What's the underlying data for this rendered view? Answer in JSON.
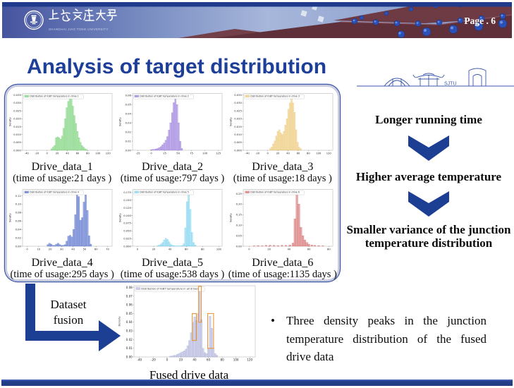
{
  "banner": {
    "university_cn": "上海交通大學",
    "university_en": "SHANGHAI JIAO TONG UNIVERSITY",
    "page_label": "Page .  6",
    "sketch_label": "SJTU"
  },
  "title": "Analysis of target distribution",
  "flow": {
    "steps": [
      "Longer running time",
      "Higher average temperature",
      "Smaller variance of the junction temperature distribution"
    ]
  },
  "fusion": {
    "line1": "Dataset",
    "line2": "fusion"
  },
  "bullet": {
    "marker": "•",
    "text": "Three density peaks in the junction temperature distribution of the fused drive data"
  },
  "colors": {
    "accent_navy": "#1c3f94",
    "title_blue": "#1d3f99",
    "highlight_orange": "#e8963c"
  },
  "chart_data": [
    {
      "type": "histogram",
      "name": "drive1",
      "legend": "Distribution of IGBT temperature in drive 1",
      "caption": "Drive_data_1",
      "subcaption": "(time of usage:21 days )",
      "color": "#7fd97f",
      "edge": "#4db84d",
      "ylabel": "Density",
      "xlim": [
        -48,
        128
      ],
      "xticks": [
        -40,
        -20,
        0,
        20,
        40,
        60,
        80,
        100,
        120
      ],
      "ylim": [
        0,
        0.036
      ],
      "yticks": [
        0,
        0.005,
        0.01,
        0.015,
        0.02,
        0.025,
        0.03,
        0.035
      ],
      "ydec": 3,
      "bin_width": 3,
      "bars": [
        [
          9,
          0.001
        ],
        [
          12,
          0.002
        ],
        [
          15,
          0.003
        ],
        [
          18,
          0.008
        ],
        [
          21,
          0.0085
        ],
        [
          24,
          0.008
        ],
        [
          27,
          0.007
        ],
        [
          30,
          0.009
        ],
        [
          33,
          0.014
        ],
        [
          36,
          0.02
        ],
        [
          39,
          0.027
        ],
        [
          42,
          0.031
        ],
        [
          45,
          0.0345
        ],
        [
          48,
          0.033
        ],
        [
          51,
          0.028
        ],
        [
          54,
          0.022
        ],
        [
          57,
          0.017
        ],
        [
          60,
          0.012
        ],
        [
          63,
          0.008
        ],
        [
          66,
          0.005
        ],
        [
          69,
          0.003
        ],
        [
          72,
          0.002
        ],
        [
          75,
          0.001
        ],
        [
          78,
          0.0005
        ]
      ]
    },
    {
      "type": "histogram",
      "name": "drive2",
      "legend": "Distribution of IGBT temperature in drive 2",
      "caption": "Drive_data_2",
      "subcaption": "(time of usage:797 days )",
      "color": "#9c7fe0",
      "edge": "#7a55cc",
      "ylabel": "Density",
      "xlim": [
        -35,
        132
      ],
      "xticks": [
        -25,
        0,
        25,
        50,
        75,
        100,
        125
      ],
      "ylim": [
        0,
        0.062
      ],
      "yticks": [
        0,
        0.01,
        0.02,
        0.03,
        0.04,
        0.05,
        0.06
      ],
      "ydec": 2,
      "bin_width": 3,
      "bars": [
        [
          0,
          0.0005
        ],
        [
          3,
          0.001
        ],
        [
          6,
          0.001
        ],
        [
          9,
          0.0015
        ],
        [
          12,
          0.002
        ],
        [
          15,
          0.003
        ],
        [
          18,
          0.004
        ],
        [
          21,
          0.006
        ],
        [
          24,
          0.008
        ],
        [
          27,
          0.011
        ],
        [
          30,
          0.015
        ],
        [
          33,
          0.022
        ],
        [
          36,
          0.03
        ],
        [
          39,
          0.041
        ],
        [
          42,
          0.052
        ],
        [
          45,
          0.058
        ],
        [
          48,
          0.05
        ],
        [
          51,
          0.03
        ],
        [
          54,
          0.01
        ],
        [
          57,
          0.002
        ]
      ]
    },
    {
      "type": "histogram",
      "name": "drive3",
      "legend": "Distribution of IGBT temperature in drive 3",
      "caption": "Drive_data_3",
      "subcaption": "(time of usage:18 days )",
      "color": "#f0cd7d",
      "edge": "#ddb04a",
      "ylabel": "Density",
      "xlim": [
        -48,
        128
      ],
      "xticks": [
        -40,
        -20,
        0,
        20,
        40,
        60,
        80,
        100,
        120
      ],
      "ylim": [
        0,
        0.036
      ],
      "yticks": [
        0,
        0.005,
        0.01,
        0.015,
        0.02,
        0.025,
        0.03,
        0.035
      ],
      "ydec": 3,
      "bin_width": 3,
      "bars": [
        [
          5,
          0.001
        ],
        [
          8,
          0.002
        ],
        [
          11,
          0.004
        ],
        [
          14,
          0.006
        ],
        [
          17,
          0.009
        ],
        [
          20,
          0.012
        ],
        [
          23,
          0.013
        ],
        [
          26,
          0.011
        ],
        [
          29,
          0.01
        ],
        [
          32,
          0.012
        ],
        [
          35,
          0.016
        ],
        [
          38,
          0.02
        ],
        [
          41,
          0.026
        ],
        [
          44,
          0.03
        ],
        [
          47,
          0.0335
        ],
        [
          50,
          0.03
        ],
        [
          53,
          0.024
        ],
        [
          56,
          0.013
        ],
        [
          59,
          0.005
        ],
        [
          62,
          0.002
        ],
        [
          65,
          0.001
        ]
      ]
    },
    {
      "type": "histogram",
      "name": "drive4",
      "legend": "Distribution of IGBT temperature in drive 4",
      "caption": "Drive_data_4",
      "subcaption": "(time of usage:295 days )",
      "color": "#5570cf",
      "edge": "#3a55bb",
      "ylabel": "Density",
      "xlim": [
        -4,
        74
      ],
      "xticks": [
        0,
        10,
        20,
        30,
        40,
        50,
        60,
        70
      ],
      "ylim": [
        0,
        0.135
      ],
      "yticks": [
        0,
        0.02,
        0.04,
        0.06,
        0.08,
        0.1,
        0.12
      ],
      "ydec": 2,
      "bin_width": 1.5,
      "bars": [
        [
          18,
          0.004
        ],
        [
          19.5,
          0.007
        ],
        [
          21,
          0.005
        ],
        [
          22.5,
          0.002
        ],
        [
          24,
          0.002
        ],
        [
          25.5,
          0.005
        ],
        [
          27,
          0.007
        ],
        [
          28.5,
          0.004
        ],
        [
          30,
          0.002
        ],
        [
          31.5,
          0.002
        ],
        [
          33,
          0.004
        ],
        [
          34.5,
          0.012
        ],
        [
          36,
          0.024
        ],
        [
          37.5,
          0.026
        ],
        [
          39,
          0.022
        ],
        [
          40.5,
          0.04
        ],
        [
          42,
          0.075
        ],
        [
          43.5,
          0.128
        ],
        [
          45,
          0.118
        ],
        [
          46.5,
          0.062
        ],
        [
          48,
          0.068
        ],
        [
          49.5,
          0.105
        ],
        [
          51,
          0.122
        ],
        [
          52.5,
          0.085
        ],
        [
          54,
          0.025
        ],
        [
          55.5,
          0.005
        ]
      ]
    },
    {
      "type": "histogram",
      "name": "drive5",
      "legend": "Distribution of IGBT temperature in drive 5",
      "caption": "Drive_data_5",
      "subcaption": "(time of usage:538 days )",
      "color": "#85d6f2",
      "edge": "#4cbfe8",
      "ylabel": "Density",
      "xlim": [
        -6,
        104
      ],
      "xticks": [
        0,
        20,
        40,
        60,
        80,
        100
      ],
      "ylim": [
        0,
        0.185
      ],
      "yticks": [
        0,
        0.025,
        0.05,
        0.075,
        0.1,
        0.125,
        0.15,
        0.175
      ],
      "ydec": 3,
      "bin_width": 2,
      "bars": [
        [
          25,
          0.002
        ],
        [
          27,
          0.004
        ],
        [
          29,
          0.007
        ],
        [
          31,
          0.012
        ],
        [
          33,
          0.02
        ],
        [
          35,
          0.026
        ],
        [
          37,
          0.022
        ],
        [
          39,
          0.014
        ],
        [
          41,
          0.007
        ],
        [
          43,
          0.003
        ],
        [
          45,
          0.002
        ],
        [
          47,
          0.001
        ],
        [
          49,
          0.001
        ],
        [
          51,
          0.001
        ],
        [
          53,
          0.001
        ],
        [
          55,
          0.002
        ],
        [
          57,
          0.008
        ],
        [
          59,
          0.06
        ],
        [
          61,
          0.145
        ],
        [
          63,
          0.172
        ],
        [
          65,
          0.12
        ],
        [
          67,
          0.045
        ],
        [
          69,
          0.012
        ],
        [
          71,
          0.004
        ]
      ]
    },
    {
      "type": "histogram",
      "name": "drive6",
      "legend": "Distribution of IGBT temperature in drive 6",
      "caption": "Drive_data_6",
      "subcaption": "(time of usage:1135 days )",
      "color": "#d97070",
      "edge": "#c64848",
      "ylabel": "Density",
      "xlim": [
        -6,
        84
      ],
      "xticks": [
        0,
        20,
        40,
        60,
        80
      ],
      "ylim": [
        0,
        0.27
      ],
      "yticks": [
        0,
        0.05,
        0.1,
        0.15,
        0.2,
        0.25
      ],
      "ydec": 2,
      "bin_width": 2,
      "bars": [
        [
          5,
          0.002
        ],
        [
          9,
          0.003
        ],
        [
          13,
          0.002
        ],
        [
          17,
          0.004
        ],
        [
          21,
          0.005
        ],
        [
          25,
          0.004
        ],
        [
          29,
          0.003
        ],
        [
          33,
          0.005
        ],
        [
          37,
          0.004
        ],
        [
          41,
          0.006
        ],
        [
          44,
          0.015
        ],
        [
          46,
          0.13
        ],
        [
          48,
          0.255
        ],
        [
          50,
          0.2
        ],
        [
          52,
          0.09
        ],
        [
          54,
          0.05
        ],
        [
          56,
          0.03
        ],
        [
          58,
          0.018
        ],
        [
          60,
          0.01
        ],
        [
          63,
          0.006
        ],
        [
          66,
          0.004
        ],
        [
          70,
          0.003
        ],
        [
          74,
          0.002
        ]
      ]
    },
    {
      "type": "histogram",
      "name": "fused",
      "legend": "Distribution of IGBT temperature in all drives",
      "caption": "Fused drive data",
      "subcaption": "",
      "color": "#b3b7df",
      "edge": "#9296c8",
      "ylabel": "Density",
      "xlim": [
        -48,
        128
      ],
      "xticks": [
        -40,
        -20,
        0,
        20,
        40,
        60,
        80,
        100,
        120
      ],
      "ylim": [
        0,
        0.082
      ],
      "yticks": [
        0,
        0.01,
        0.02,
        0.03,
        0.04,
        0.05,
        0.06,
        0.07,
        0.08
      ],
      "ydec": 2,
      "bin_width": 2.5,
      "bars": [
        [
          5,
          0.001
        ],
        [
          7.5,
          0.001
        ],
        [
          10,
          0.002
        ],
        [
          12.5,
          0.002
        ],
        [
          15,
          0.003
        ],
        [
          17.5,
          0.004
        ],
        [
          20,
          0.005
        ],
        [
          22.5,
          0.006
        ],
        [
          25,
          0.007
        ],
        [
          27.5,
          0.009
        ],
        [
          30,
          0.013
        ],
        [
          32.5,
          0.019
        ],
        [
          35,
          0.028
        ],
        [
          37.5,
          0.04
        ],
        [
          40,
          0.046
        ],
        [
          42.5,
          0.042
        ],
        [
          45,
          0.05
        ],
        [
          47.5,
          0.078
        ],
        [
          50,
          0.043
        ],
        [
          52.5,
          0.01
        ],
        [
          55,
          0.005
        ],
        [
          57.5,
          0.004
        ],
        [
          60,
          0.01
        ],
        [
          62.5,
          0.047
        ],
        [
          65,
          0.033
        ],
        [
          67.5,
          0.01
        ],
        [
          70,
          0.004
        ],
        [
          72.5,
          0.002
        ]
      ],
      "highlight_boxes": [
        [
          36.5,
          42.5,
          0.019,
          0.05
        ],
        [
          45.8,
          49.8,
          0.04,
          0.0815
        ],
        [
          59,
          67.5,
          0.01,
          0.05
        ]
      ]
    }
  ]
}
